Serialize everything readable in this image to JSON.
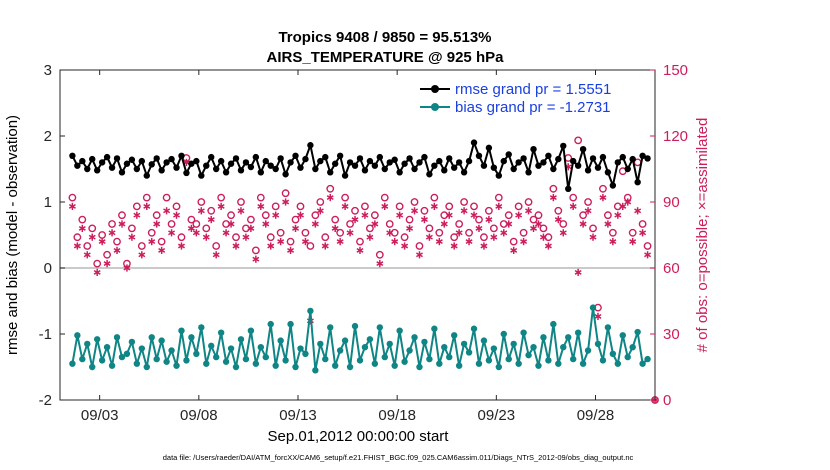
{
  "chart_data": {
    "type": "line",
    "title": "Tropics 9408 / 9850 = 95.513%",
    "subtitle": "AIRS_TEMPERATURE @ 925 hPa",
    "xlabel": "Sep.01,2012 00:00:00 start",
    "ylabel": "rmse and bias (model - observation)",
    "y2label": "# of obs: o=possible; ×=assimilated",
    "footer": "data file: /Users/raeder/DAI/ATM_forcXX/CAM6_setup/f.e21.FHIST_BGC.f09_025.CAM6assim.011/Diags_NTrS_2012-09/obs_diag_output.nc",
    "xlim": [
      1,
      31
    ],
    "ylim": [
      -2,
      3
    ],
    "y2lim": [
      0,
      150
    ],
    "xticks": [
      3,
      8,
      13,
      18,
      23,
      28
    ],
    "xtick_labels": [
      "09/03",
      "09/08",
      "09/13",
      "09/18",
      "09/23",
      "09/28"
    ],
    "yticks": [
      -2,
      -1,
      0,
      1,
      2,
      3
    ],
    "ytick_labels": [
      "-2",
      "-1",
      "0",
      "1",
      "2",
      "3"
    ],
    "y2ticks": [
      0,
      30,
      60,
      90,
      120,
      150
    ],
    "y2tick_labels": [
      "0",
      "30",
      "60",
      "90",
      "120",
      "150"
    ],
    "legend_position": "top-right",
    "colors": {
      "rmse": "#000000",
      "bias": "#0f8585",
      "obs": "#cc1e5c",
      "legend_text": "#1a3fe0",
      "zero_line": "#b8b8b8"
    },
    "series": [
      {
        "name": "rmse grand pr = 1.5551",
        "x": [
          1.625,
          1.875,
          2.125,
          2.375,
          2.625,
          2.875,
          3.125,
          3.375,
          3.625,
          3.875,
          4.125,
          4.375,
          4.625,
          4.875,
          5.125,
          5.375,
          5.625,
          5.875,
          6.125,
          6.375,
          6.625,
          6.875,
          7.125,
          7.375,
          7.625,
          7.875,
          8.125,
          8.375,
          8.625,
          8.875,
          9.125,
          9.375,
          9.625,
          9.875,
          10.125,
          10.375,
          10.625,
          10.875,
          11.125,
          11.375,
          11.625,
          11.875,
          12.125,
          12.375,
          12.625,
          12.875,
          13.125,
          13.375,
          13.625,
          13.875,
          14.125,
          14.375,
          14.625,
          14.875,
          15.125,
          15.375,
          15.625,
          15.875,
          16.125,
          16.375,
          16.625,
          16.875,
          17.125,
          17.375,
          17.625,
          17.875,
          18.125,
          18.375,
          18.625,
          18.875,
          19.125,
          19.375,
          19.625,
          19.875,
          20.125,
          20.375,
          20.625,
          20.875,
          21.125,
          21.375,
          21.625,
          21.875,
          22.125,
          22.375,
          22.625,
          22.875,
          23.125,
          23.375,
          23.625,
          23.875,
          24.125,
          24.375,
          24.625,
          24.875,
          25.125,
          25.375,
          25.625,
          25.875,
          26.125,
          26.375,
          26.625,
          26.875,
          27.125,
          27.375,
          27.625,
          27.875,
          28.125,
          28.375,
          28.625,
          28.875,
          29.125,
          29.375,
          29.625,
          29.875,
          30.125,
          30.375,
          30.625
        ],
        "values": [
          1.7,
          1.55,
          1.62,
          1.5,
          1.65,
          1.48,
          1.6,
          1.68,
          1.52,
          1.66,
          1.45,
          1.58,
          1.64,
          1.5,
          1.62,
          1.4,
          1.57,
          1.66,
          1.48,
          1.6,
          1.65,
          1.52,
          1.7,
          1.44,
          1.58,
          1.62,
          1.4,
          1.55,
          1.68,
          1.5,
          1.62,
          1.45,
          1.58,
          1.66,
          1.48,
          1.6,
          1.53,
          1.68,
          1.45,
          1.62,
          1.55,
          1.5,
          1.66,
          1.42,
          1.6,
          1.7,
          1.52,
          1.65,
          1.86,
          1.5,
          1.62,
          1.68,
          1.45,
          1.58,
          1.7,
          1.4,
          1.6,
          1.55,
          1.66,
          1.48,
          1.62,
          1.55,
          1.68,
          1.5,
          1.6,
          1.64,
          1.45,
          1.58,
          1.66,
          1.5,
          1.6,
          1.68,
          1.42,
          1.55,
          1.62,
          1.48,
          1.66,
          1.52,
          1.6,
          1.45,
          1.62,
          1.9,
          1.7,
          1.55,
          1.82,
          1.52,
          1.4,
          1.62,
          1.72,
          1.5,
          1.6,
          1.66,
          1.45,
          1.8,
          1.55,
          1.6,
          1.7,
          1.5,
          1.65,
          1.85,
          1.2,
          1.62,
          1.55,
          1.8,
          1.48,
          1.66,
          1.52,
          1.68,
          1.45,
          1.25,
          1.6,
          1.68,
          1.5,
          1.65,
          1.3,
          1.7,
          1.66
        ]
      },
      {
        "name": "bias grand pr = -1.2731",
        "x": [
          1.625,
          1.875,
          2.125,
          2.375,
          2.625,
          2.875,
          3.125,
          3.375,
          3.625,
          3.875,
          4.125,
          4.375,
          4.625,
          4.875,
          5.125,
          5.375,
          5.625,
          5.875,
          6.125,
          6.375,
          6.625,
          6.875,
          7.125,
          7.375,
          7.625,
          7.875,
          8.125,
          8.375,
          8.625,
          8.875,
          9.125,
          9.375,
          9.625,
          9.875,
          10.125,
          10.375,
          10.625,
          10.875,
          11.125,
          11.375,
          11.625,
          11.875,
          12.125,
          12.375,
          12.625,
          12.875,
          13.125,
          13.375,
          13.625,
          13.875,
          14.125,
          14.375,
          14.625,
          14.875,
          15.125,
          15.375,
          15.625,
          15.875,
          16.125,
          16.375,
          16.625,
          16.875,
          17.125,
          17.375,
          17.625,
          17.875,
          18.125,
          18.375,
          18.625,
          18.875,
          19.125,
          19.375,
          19.625,
          19.875,
          20.125,
          20.375,
          20.625,
          20.875,
          21.125,
          21.375,
          21.625,
          21.875,
          22.125,
          22.375,
          22.625,
          22.875,
          23.125,
          23.375,
          23.625,
          23.875,
          24.125,
          24.375,
          24.625,
          24.875,
          25.125,
          25.375,
          25.625,
          25.875,
          26.125,
          26.375,
          26.625,
          26.875,
          27.125,
          27.375,
          27.625,
          27.875,
          28.125,
          28.375,
          28.625,
          28.875,
          29.125,
          29.375,
          29.625,
          29.875,
          30.125,
          30.375,
          30.625
        ],
        "values": [
          -1.45,
          -1.02,
          -1.38,
          -1.15,
          -1.5,
          -1.08,
          -1.4,
          -1.2,
          -1.48,
          -1.05,
          -1.35,
          -1.3,
          -1.12,
          -1.45,
          -1.22,
          -1.5,
          -1.05,
          -1.38,
          -1.1,
          -1.42,
          -1.25,
          -1.48,
          -0.95,
          -1.4,
          -1.05,
          -1.3,
          -0.9,
          -1.45,
          -1.18,
          -1.35,
          -0.98,
          -1.42,
          -1.22,
          -1.5,
          -1.08,
          -1.38,
          -0.95,
          -1.45,
          -1.2,
          -1.35,
          -0.85,
          -1.48,
          -1.1,
          -1.4,
          -0.85,
          -1.5,
          -1.22,
          -1.3,
          -0.65,
          -1.55,
          -1.15,
          -1.38,
          -0.9,
          -1.48,
          -1.25,
          -1.1,
          -1.5,
          -0.88,
          -1.4,
          -1.2,
          -1.08,
          -1.45,
          -0.9,
          -1.35,
          -1.15,
          -1.48,
          -0.95,
          -1.42,
          -1.25,
          -1.05,
          -1.5,
          -1.12,
          -1.38,
          -0.92,
          -1.45,
          -1.2,
          -1.35,
          -1.02,
          -1.48,
          -1.15,
          -1.28,
          -0.92,
          -1.45,
          -1.1,
          -1.4,
          -1.22,
          -1.5,
          -1.0,
          -1.38,
          -1.15,
          -1.45,
          -0.98,
          -1.32,
          -1.2,
          -1.48,
          -1.05,
          -1.4,
          -0.85,
          -1.45,
          -1.2,
          -1.05,
          -1.38,
          -0.98,
          -1.45,
          -1.25,
          -0.6,
          -1.15,
          -1.4,
          -0.9,
          -1.3,
          -1.45,
          -1.02,
          -1.35,
          -1.2,
          -0.97,
          -1.45,
          -1.38
        ]
      },
      {
        "name": "# obs possible",
        "axis": "right",
        "marker": "o",
        "x": [
          1.625,
          1.875,
          2.125,
          2.375,
          2.625,
          2.875,
          3.125,
          3.375,
          3.625,
          3.875,
          4.125,
          4.375,
          4.625,
          4.875,
          5.125,
          5.375,
          5.625,
          5.875,
          6.125,
          6.375,
          6.625,
          6.875,
          7.125,
          7.375,
          7.625,
          7.875,
          8.125,
          8.375,
          8.625,
          8.875,
          9.125,
          9.375,
          9.625,
          9.875,
          10.125,
          10.375,
          10.625,
          10.875,
          11.125,
          11.375,
          11.625,
          11.875,
          12.125,
          12.375,
          12.625,
          12.875,
          13.125,
          13.375,
          13.625,
          13.875,
          14.125,
          14.375,
          14.625,
          14.875,
          15.125,
          15.375,
          15.625,
          15.875,
          16.125,
          16.375,
          16.625,
          16.875,
          17.125,
          17.375,
          17.625,
          17.875,
          18.125,
          18.375,
          18.625,
          18.875,
          19.125,
          19.375,
          19.625,
          19.875,
          20.125,
          20.375,
          20.625,
          20.875,
          21.125,
          21.375,
          21.625,
          21.875,
          22.125,
          22.375,
          22.625,
          22.875,
          23.125,
          23.375,
          23.625,
          23.875,
          24.125,
          24.375,
          24.625,
          24.875,
          25.125,
          25.375,
          25.625,
          25.875,
          26.125,
          26.375,
          26.625,
          26.875,
          27.125,
          27.375,
          27.625,
          27.875,
          28.125,
          28.375,
          28.625,
          28.875,
          29.125,
          29.375,
          29.625,
          29.875,
          30.125,
          30.375,
          30.625,
          31.0
        ],
        "values": [
          92,
          74,
          82,
          70,
          78,
          62,
          75,
          66,
          80,
          72,
          84,
          62,
          78,
          88,
          70,
          92,
          76,
          84,
          72,
          92,
          80,
          88,
          74,
          110,
          82,
          80,
          90,
          78,
          86,
          70,
          92,
          80,
          84,
          74,
          90,
          78,
          82,
          68,
          92,
          84,
          74,
          88,
          76,
          94,
          72,
          82,
          88,
          76,
          70,
          84,
          90,
          74,
          96,
          82,
          76,
          92,
          80,
          86,
          72,
          88,
          78,
          84,
          66,
          92,
          80,
          76,
          88,
          74,
          82,
          90,
          70,
          86,
          78,
          92,
          76,
          84,
          88,
          74,
          80,
          90,
          76,
          88,
          82,
          74,
          86,
          78,
          92,
          80,
          84,
          72,
          88,
          76,
          90,
          82,
          84,
          78,
          74,
          96,
          86,
          80,
          110,
          92,
          118,
          84,
          90,
          78,
          42,
          96,
          84,
          76,
          88,
          104,
          92,
          76,
          108,
          80,
          70,
          0
        ]
      },
      {
        "name": "# obs assimilated",
        "axis": "right",
        "marker": "*",
        "x": [
          1.625,
          1.875,
          2.125,
          2.375,
          2.625,
          2.875,
          3.125,
          3.375,
          3.625,
          3.875,
          4.125,
          4.375,
          4.625,
          4.875,
          5.125,
          5.375,
          5.625,
          5.875,
          6.125,
          6.375,
          6.625,
          6.875,
          7.125,
          7.375,
          7.625,
          7.875,
          8.125,
          8.375,
          8.625,
          8.875,
          9.125,
          9.375,
          9.625,
          9.875,
          10.125,
          10.375,
          10.625,
          10.875,
          11.125,
          11.375,
          11.625,
          11.875,
          12.125,
          12.375,
          12.625,
          12.875,
          13.125,
          13.375,
          13.625,
          13.875,
          14.125,
          14.375,
          14.625,
          14.875,
          15.125,
          15.375,
          15.625,
          15.875,
          16.125,
          16.375,
          16.625,
          16.875,
          17.125,
          17.375,
          17.625,
          17.875,
          18.125,
          18.375,
          18.625,
          18.875,
          19.125,
          19.375,
          19.625,
          19.875,
          20.125,
          20.375,
          20.625,
          20.875,
          21.125,
          21.375,
          21.625,
          21.875,
          22.125,
          22.375,
          22.625,
          22.875,
          23.125,
          23.375,
          23.625,
          23.875,
          24.125,
          24.375,
          24.625,
          24.875,
          25.125,
          25.375,
          25.625,
          25.875,
          26.125,
          26.375,
          26.625,
          26.875,
          27.125,
          27.375,
          27.625,
          27.875,
          28.125,
          28.375,
          28.625,
          28.875,
          29.125,
          29.375,
          29.625,
          29.875,
          30.125,
          30.375,
          30.625,
          31.0
        ],
        "values": [
          88,
          70,
          78,
          66,
          74,
          58,
          72,
          62,
          76,
          68,
          80,
          60,
          74,
          84,
          66,
          88,
          72,
          80,
          68,
          86,
          76,
          84,
          70,
          108,
          78,
          76,
          86,
          74,
          82,
          66,
          88,
          76,
          80,
          70,
          86,
          74,
          78,
          64,
          88,
          80,
          70,
          84,
          72,
          90,
          68,
          78,
          84,
          72,
          36,
          80,
          86,
          70,
          92,
          78,
          72,
          88,
          76,
          82,
          68,
          84,
          74,
          80,
          62,
          88,
          76,
          72,
          84,
          70,
          78,
          86,
          66,
          82,
          74,
          88,
          72,
          80,
          84,
          70,
          76,
          86,
          72,
          84,
          78,
          70,
          82,
          74,
          88,
          76,
          80,
          68,
          84,
          72,
          86,
          78,
          80,
          74,
          70,
          92,
          82,
          76,
          106,
          88,
          58,
          80,
          86,
          74,
          38,
          92,
          80,
          72,
          84,
          88,
          90,
          72,
          86,
          76,
          66,
          0
        ]
      }
    ]
  }
}
